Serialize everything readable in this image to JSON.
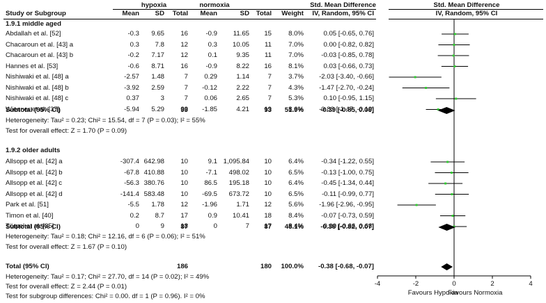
{
  "header": {
    "group1": "hypoxia",
    "group2": "normoxia",
    "smd_title": "Std. Mean Difference",
    "cols": {
      "study": "Study or Subgroup",
      "mean1": "Mean",
      "sd1": "SD",
      "total1": "Total",
      "mean2": "Mean",
      "sd2": "SD",
      "total2": "Total",
      "weight": "Weight",
      "ci": "IV, Random, 95% CI"
    },
    "plot_title": "Std. Mean Difference",
    "plot_sub": "IV, Random, 95% CI"
  },
  "subgroups": [
    {
      "title": "1.9.1 middle aged",
      "studies": [
        {
          "name": "Abdallah et al. [52]",
          "m1": "-0.3",
          "sd1": "9.65",
          "n1": "16",
          "m2": "-0.9",
          "sd2": "11.65",
          "n2": "15",
          "w": "8.0%",
          "ci": "0.05 [-0.65, 0.76]"
        },
        {
          "name": "Chacaroun et al. [43] a",
          "m1": "0.3",
          "sd1": "7.8",
          "n1": "12",
          "m2": "0.3",
          "sd2": "10.05",
          "n2": "11",
          "w": "7.0%",
          "ci": "0.00 [-0.82, 0.82]"
        },
        {
          "name": "Chacaroun et al. [43] b",
          "m1": "-0.2",
          "sd1": "7.17",
          "n1": "12",
          "m2": "0.1",
          "sd2": "9.35",
          "n2": "11",
          "w": "7.0%",
          "ci": "-0.03 [-0.85, 0.78]"
        },
        {
          "name": "Hannes et al. [53]",
          "m1": "-0.6",
          "sd1": "8.71",
          "n1": "16",
          "m2": "-0.9",
          "sd2": "8.22",
          "n2": "16",
          "w": "8.1%",
          "ci": "0.03 [-0.66, 0.73]"
        },
        {
          "name": "Nishiwaki et al. [48] a",
          "m1": "-2.57",
          "sd1": "1.48",
          "n1": "7",
          "m2": "0.29",
          "sd2": "1.14",
          "n2": "7",
          "w": "3.7%",
          "ci": "-2.03 [-3.40, -0.66]"
        },
        {
          "name": "Nishiwaki et al. [48] b",
          "m1": "-3.92",
          "sd1": "2.59",
          "n1": "7",
          "m2": "-0.12",
          "sd2": "2.22",
          "n2": "7",
          "w": "4.3%",
          "ci": "-1.47 [-2.70, -0.24]"
        },
        {
          "name": "Nishiwaki et al. [48] c",
          "m1": "0.37",
          "sd1": "3",
          "n1": "7",
          "m2": "0.06",
          "sd2": "2.65",
          "n2": "7",
          "w": "5.3%",
          "ci": "0.10 [-0.95, 1.15]"
        },
        {
          "name": "Wiesner et al. [37]",
          "m1": "-5.94",
          "sd1": "5.29",
          "n1": "22",
          "m2": "-1.85",
          "sd2": "4.21",
          "n2": "19",
          "w": "8.6%",
          "ci": "-0.83 [-1.47, -0.19]"
        }
      ],
      "subtotal": {
        "label": "Subtotal (95% CI)",
        "n1": "99",
        "n2": "93",
        "w": "51.9%",
        "ci": "-0.39 [-0.85, 0.06]"
      },
      "heterogeneity": "Heterogeneity: Tau² = 0.23; Chi² = 15.54, df = 7 (P = 0.03); I² = 55%",
      "overall": "Test for overall effect: Z = 1.70 (P = 0.09)"
    },
    {
      "title": "1.9.2 older adults",
      "studies": [
        {
          "name": "Allsopp et al. [42] a",
          "m1": "-307.4",
          "sd1": "642.98",
          "n1": "10",
          "m2": "9.1",
          "sd2": "1,095.84",
          "n2": "10",
          "w": "6.4%",
          "ci": "-0.34 [-1.22, 0.55]"
        },
        {
          "name": "Allsopp et al. [42] b",
          "m1": "-67.8",
          "sd1": "410.88",
          "n1": "10",
          "m2": "-7.1",
          "sd2": "498.02",
          "n2": "10",
          "w": "6.5%",
          "ci": "-0.13 [-1.00, 0.75]"
        },
        {
          "name": "Allsopp et al. [42] c",
          "m1": "-56.3",
          "sd1": "380.76",
          "n1": "10",
          "m2": "86.5",
          "sd2": "195.18",
          "n2": "10",
          "w": "6.4%",
          "ci": "-0.45 [-1.34, 0.44]"
        },
        {
          "name": "Allsopp et al. [42] d",
          "m1": "-141.4",
          "sd1": "583.48",
          "n1": "10",
          "m2": "-69.5",
          "sd2": "673.72",
          "n2": "10",
          "w": "6.5%",
          "ci": "-0.11 [-0.99, 0.77]"
        },
        {
          "name": "Park et al. [51]",
          "m1": "-5.5",
          "sd1": "1.78",
          "n1": "12",
          "m2": "-1.96",
          "sd2": "1.71",
          "n2": "12",
          "w": "5.6%",
          "ci": "-1.96 [-2.96, -0.95]"
        },
        {
          "name": "Timon et al. [40]",
          "m1": "0.2",
          "sd1": "8.7",
          "n1": "17",
          "m2": "0.9",
          "sd2": "10.41",
          "n2": "18",
          "w": "8.4%",
          "ci": "-0.07 [-0.73, 0.59]"
        },
        {
          "name": "Törpel et al. [35]",
          "m1": "0",
          "sd1": "9",
          "n1": "18",
          "m2": "0",
          "sd2": "7",
          "n2": "17",
          "w": "8.4%",
          "ci": "0.00 [-0.66, 0.66]"
        }
      ],
      "subtotal": {
        "label": "Subtotal (95% CI)",
        "n1": "87",
        "n2": "87",
        "w": "48.1%",
        "ci": "-0.38 [-0.82, 0.07]"
      },
      "heterogeneity": "Heterogeneity: Tau² = 0.18; Chi² = 12.16, df = 6 (P = 0.06); I² = 51%",
      "overall": "Test for overall effect: Z = 1.67 (P = 0.10)"
    }
  ],
  "total": {
    "label": "Total (95% CI)",
    "n1": "186",
    "n2": "180",
    "w": "100.0%",
    "ci": "-0.38 [-0.68, -0.07]"
  },
  "total_notes": [
    "Heterogeneity: Tau² = 0.17; Chi² = 27.70, df = 14 (P = 0.02); I² = 49%",
    "Test for overall effect: Z = 2.44 (P = 0.01)",
    "Test for subgroup differences: Chi² = 0.00. df = 1 (P = 0.96). I² = 0%"
  ],
  "chart_data": {
    "type": "forest",
    "title": "Std. Mean Difference",
    "subtitle": "IV, Random, 95% CI",
    "xlim": [
      -4,
      4
    ],
    "ticks": [
      -4,
      -2,
      0,
      2,
      4
    ],
    "tick_labels": [
      "-4",
      "-2",
      "0",
      "2",
      "4"
    ],
    "favours_left": "Favours Hypoxia",
    "favours_right": "Favours Normoxia",
    "marker_color": "#33cc33",
    "studies": [
      {
        "est": 0.05,
        "lo": -0.65,
        "hi": 0.76
      },
      {
        "est": 0.0,
        "lo": -0.82,
        "hi": 0.82
      },
      {
        "est": -0.03,
        "lo": -0.85,
        "hi": 0.78
      },
      {
        "est": 0.03,
        "lo": -0.66,
        "hi": 0.73
      },
      {
        "est": -2.03,
        "lo": -3.4,
        "hi": -0.66
      },
      {
        "est": -1.47,
        "lo": -2.7,
        "hi": -0.24
      },
      {
        "est": 0.1,
        "lo": -0.95,
        "hi": 1.15
      },
      {
        "est": -0.83,
        "lo": -1.47,
        "hi": -0.19
      },
      {
        "est": -0.34,
        "lo": -1.22,
        "hi": 0.55
      },
      {
        "est": -0.13,
        "lo": -1.0,
        "hi": 0.75
      },
      {
        "est": -0.45,
        "lo": -1.34,
        "hi": 0.44
      },
      {
        "est": -0.11,
        "lo": -0.99,
        "hi": 0.77
      },
      {
        "est": -1.96,
        "lo": -2.96,
        "hi": -0.95
      },
      {
        "est": -0.07,
        "lo": -0.73,
        "hi": 0.59
      },
      {
        "est": 0.0,
        "lo": -0.66,
        "hi": 0.66
      }
    ],
    "diamonds": [
      {
        "est": -0.39,
        "lo": -0.85,
        "hi": 0.06
      },
      {
        "est": -0.38,
        "lo": -0.82,
        "hi": 0.07
      },
      {
        "est": -0.38,
        "lo": -0.68,
        "hi": -0.07
      }
    ]
  }
}
